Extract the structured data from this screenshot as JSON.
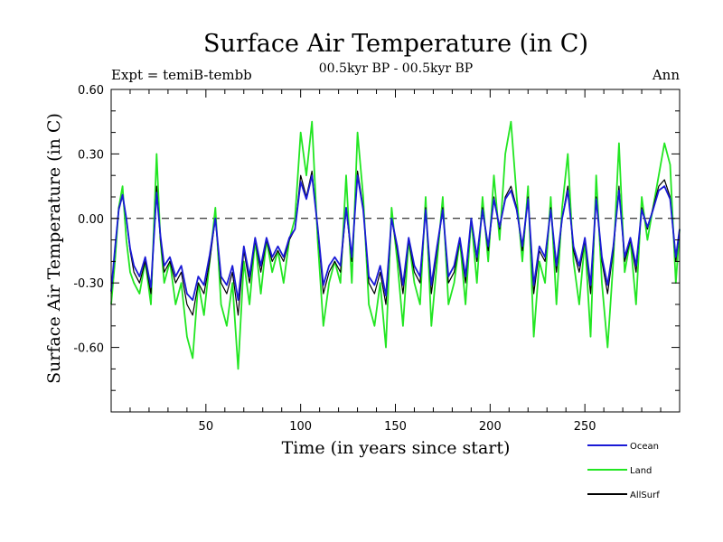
{
  "chart_data": {
    "type": "line",
    "title": "Surface Air Temperature (in C)",
    "subtitle": "00.5kyr BP - 00.5kyr BP",
    "expt_label": "Expt = temiB-tembb",
    "period_label": "Ann",
    "xlabel": "Time (in years since start)",
    "ylabel": "Surface Air Temperature (in C)",
    "xlim": [
      0,
      300
    ],
    "ylim": [
      -0.9,
      0.6
    ],
    "x_ticks": [
      50,
      100,
      150,
      200,
      250
    ],
    "x_tick_labels": [
      "50",
      "100",
      "150",
      "200",
      "250"
    ],
    "y_ticks": [
      0.6,
      0.3,
      0.0,
      -0.3,
      -0.6
    ],
    "y_tick_labels": [
      "0.60",
      "0.30",
      "0.00",
      "-0.30",
      "-0.60"
    ],
    "zero_line": true,
    "legend": [
      {
        "name": "Ocean",
        "color": "#1a1ad6"
      },
      {
        "name": "Land",
        "color": "#22e622"
      },
      {
        "name": "AllSurf",
        "color": "#000000"
      }
    ],
    "series": [
      {
        "name": "Land",
        "color": "#22e622",
        "x": [
          0,
          2,
          4,
          6,
          8,
          10,
          12,
          15,
          18,
          21,
          24,
          26,
          28,
          31,
          34,
          37,
          40,
          43,
          46,
          49,
          52,
          55,
          58,
          61,
          64,
          67,
          70,
          73,
          76,
          79,
          82,
          85,
          88,
          91,
          94,
          97,
          100,
          103,
          106,
          109,
          112,
          115,
          118,
          121,
          124,
          127,
          130,
          133,
          136,
          139,
          142,
          145,
          148,
          151,
          154,
          157,
          160,
          163,
          166,
          169,
          172,
          175,
          178,
          181,
          184,
          187,
          190,
          193,
          196,
          199,
          202,
          205,
          208,
          211,
          214,
          217,
          220,
          223,
          226,
          229,
          232,
          235,
          238,
          241,
          244,
          247,
          250,
          253,
          256,
          259,
          262,
          265,
          268,
          271,
          274,
          277,
          280,
          283,
          286,
          289,
          292,
          295,
          298,
          300
        ],
        "values": [
          -0.4,
          -0.2,
          0.05,
          0.15,
          -0.1,
          -0.25,
          -0.3,
          -0.35,
          -0.2,
          -0.4,
          0.3,
          -0.1,
          -0.3,
          -0.2,
          -0.4,
          -0.3,
          -0.55,
          -0.65,
          -0.3,
          -0.45,
          -0.2,
          0.05,
          -0.4,
          -0.5,
          -0.3,
          -0.7,
          -0.2,
          -0.4,
          -0.1,
          -0.35,
          -0.1,
          -0.25,
          -0.15,
          -0.3,
          -0.1,
          0.0,
          0.4,
          0.2,
          0.45,
          -0.1,
          -0.5,
          -0.3,
          -0.2,
          -0.3,
          0.2,
          -0.3,
          0.4,
          0.1,
          -0.4,
          -0.5,
          -0.3,
          -0.6,
          0.05,
          -0.2,
          -0.5,
          -0.1,
          -0.3,
          -0.4,
          0.1,
          -0.5,
          -0.2,
          0.1,
          -0.4,
          -0.3,
          -0.1,
          -0.4,
          0.0,
          -0.3,
          0.1,
          -0.2,
          0.2,
          -0.1,
          0.3,
          0.45,
          0.1,
          -0.2,
          0.15,
          -0.55,
          -0.2,
          -0.3,
          0.1,
          -0.4,
          0.05,
          0.3,
          -0.2,
          -0.4,
          -0.1,
          -0.55,
          0.2,
          -0.3,
          -0.6,
          -0.2,
          0.35,
          -0.25,
          -0.1,
          -0.4,
          0.1,
          -0.1,
          0.05,
          0.2,
          0.35,
          0.25,
          -0.3,
          -0.05
        ]
      },
      {
        "name": "AllSurf",
        "color": "#000000",
        "x": [
          0,
          2,
          4,
          6,
          8,
          10,
          12,
          15,
          18,
          21,
          24,
          26,
          28,
          31,
          34,
          37,
          40,
          43,
          46,
          49,
          52,
          55,
          58,
          61,
          64,
          67,
          70,
          73,
          76,
          79,
          82,
          85,
          88,
          91,
          94,
          97,
          100,
          103,
          106,
          109,
          112,
          115,
          118,
          121,
          124,
          127,
          130,
          133,
          136,
          139,
          142,
          145,
          148,
          151,
          154,
          157,
          160,
          163,
          166,
          169,
          172,
          175,
          178,
          181,
          184,
          187,
          190,
          193,
          196,
          199,
          202,
          205,
          208,
          211,
          214,
          217,
          220,
          223,
          226,
          229,
          232,
          235,
          238,
          241,
          244,
          247,
          250,
          253,
          256,
          259,
          262,
          265,
          268,
          271,
          274,
          277,
          280,
          283,
          286,
          289,
          292,
          295,
          298,
          300
        ],
        "values": [
          -0.35,
          -0.15,
          0.05,
          0.1,
          0.0,
          -0.15,
          -0.25,
          -0.3,
          -0.2,
          -0.35,
          0.15,
          -0.1,
          -0.25,
          -0.2,
          -0.3,
          -0.25,
          -0.4,
          -0.45,
          -0.3,
          -0.35,
          -0.2,
          0.0,
          -0.3,
          -0.35,
          -0.25,
          -0.45,
          -0.15,
          -0.3,
          -0.1,
          -0.25,
          -0.1,
          -0.2,
          -0.15,
          -0.2,
          -0.1,
          -0.05,
          0.2,
          0.1,
          0.22,
          -0.05,
          -0.35,
          -0.25,
          -0.2,
          -0.25,
          0.05,
          -0.2,
          0.22,
          0.05,
          -0.3,
          -0.35,
          -0.25,
          -0.4,
          0.0,
          -0.15,
          -0.35,
          -0.1,
          -0.25,
          -0.3,
          0.05,
          -0.35,
          -0.15,
          0.05,
          -0.3,
          -0.25,
          -0.1,
          -0.3,
          0.0,
          -0.2,
          0.05,
          -0.15,
          0.1,
          -0.05,
          0.1,
          0.15,
          0.05,
          -0.15,
          0.1,
          -0.35,
          -0.15,
          -0.2,
          0.05,
          -0.25,
          0.0,
          0.15,
          -0.15,
          -0.25,
          -0.1,
          -0.35,
          0.1,
          -0.2,
          -0.35,
          -0.15,
          0.15,
          -0.2,
          -0.1,
          -0.25,
          0.05,
          -0.05,
          0.05,
          0.15,
          0.18,
          0.1,
          -0.2,
          -0.05
        ]
      },
      {
        "name": "Ocean",
        "color": "#1a1ad6",
        "x": [
          0,
          2,
          4,
          6,
          8,
          10,
          12,
          15,
          18,
          21,
          24,
          26,
          28,
          31,
          34,
          37,
          40,
          43,
          46,
          49,
          52,
          55,
          58,
          61,
          64,
          67,
          70,
          73,
          76,
          79,
          82,
          85,
          88,
          91,
          94,
          97,
          100,
          103,
          106,
          109,
          112,
          115,
          118,
          121,
          124,
          127,
          130,
          133,
          136,
          139,
          142,
          145,
          148,
          151,
          154,
          157,
          160,
          163,
          166,
          169,
          172,
          175,
          178,
          181,
          184,
          187,
          190,
          193,
          196,
          199,
          202,
          205,
          208,
          211,
          214,
          217,
          220,
          223,
          226,
          229,
          232,
          235,
          238,
          241,
          244,
          247,
          250,
          253,
          256,
          259,
          262,
          265,
          268,
          271,
          274,
          277,
          280,
          283,
          286,
          289,
          292,
          295,
          298,
          300
        ],
        "values": [
          -0.34,
          -0.14,
          0.04,
          0.11,
          0.0,
          -0.14,
          -0.22,
          -0.27,
          -0.18,
          -0.32,
          0.12,
          -0.08,
          -0.22,
          -0.18,
          -0.27,
          -0.22,
          -0.35,
          -0.38,
          -0.27,
          -0.31,
          -0.17,
          0.0,
          -0.27,
          -0.31,
          -0.22,
          -0.38,
          -0.13,
          -0.27,
          -0.09,
          -0.22,
          -0.09,
          -0.18,
          -0.13,
          -0.18,
          -0.09,
          -0.05,
          0.17,
          0.09,
          0.2,
          -0.04,
          -0.31,
          -0.22,
          -0.18,
          -0.22,
          0.05,
          -0.18,
          0.2,
          0.04,
          -0.27,
          -0.31,
          -0.22,
          -0.36,
          0.0,
          -0.13,
          -0.31,
          -0.09,
          -0.22,
          -0.27,
          0.04,
          -0.31,
          -0.13,
          0.04,
          -0.27,
          -0.22,
          -0.09,
          -0.27,
          0.0,
          -0.18,
          0.04,
          -0.13,
          0.09,
          -0.04,
          0.09,
          0.13,
          0.04,
          -0.13,
          0.09,
          -0.31,
          -0.13,
          -0.18,
          0.04,
          -0.22,
          0.0,
          0.13,
          -0.13,
          -0.22,
          -0.09,
          -0.31,
          0.09,
          -0.18,
          -0.31,
          -0.13,
          0.13,
          -0.18,
          -0.09,
          -0.22,
          0.04,
          -0.04,
          0.04,
          0.13,
          0.15,
          0.09,
          -0.18,
          -0.05
        ]
      }
    ]
  }
}
